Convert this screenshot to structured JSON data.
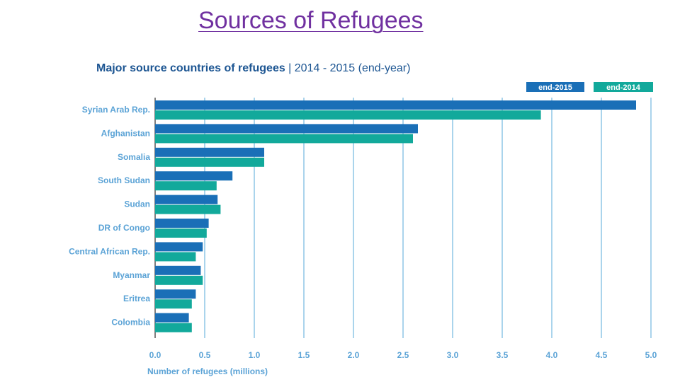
{
  "slide": {
    "title": "Sources of Refugees"
  },
  "colors": {
    "series_2015": "#1a6fb7",
    "series_2014": "#12a99b",
    "label_text": "#5ba3d6",
    "title_dark": "#1c5592",
    "grid": "#8ec6e6",
    "axis": "#555555"
  },
  "chart_data": {
    "type": "bar",
    "orientation": "horizontal",
    "title_bold": "Major source countries of refugees",
    "title_rest": " | 2014 - 2015 (end-year)",
    "xlabel": "Number of refugees (millions)",
    "ylabel": "",
    "xlim": [
      0,
      5
    ],
    "x_ticks": [
      "0.0",
      "0.5",
      "1.0",
      "1.5",
      "2.0",
      "2.5",
      "3.0",
      "3.5",
      "4.0",
      "4.5",
      "5.0"
    ],
    "grid": true,
    "legend_position": "top-right",
    "categories": [
      "Syrian Arab Rep.",
      "Afghanistan",
      "Somalia",
      "South Sudan",
      "Sudan",
      "DR of Congo",
      "Central African Rep.",
      "Myanmar",
      "Eritrea",
      "Colombia"
    ],
    "series": [
      {
        "name": "end-2015",
        "values": [
          4.85,
          2.65,
          1.1,
          0.78,
          0.63,
          0.54,
          0.48,
          0.46,
          0.41,
          0.34
        ]
      },
      {
        "name": "end-2014",
        "values": [
          3.89,
          2.6,
          1.1,
          0.62,
          0.66,
          0.52,
          0.41,
          0.48,
          0.37,
          0.37
        ]
      }
    ]
  }
}
